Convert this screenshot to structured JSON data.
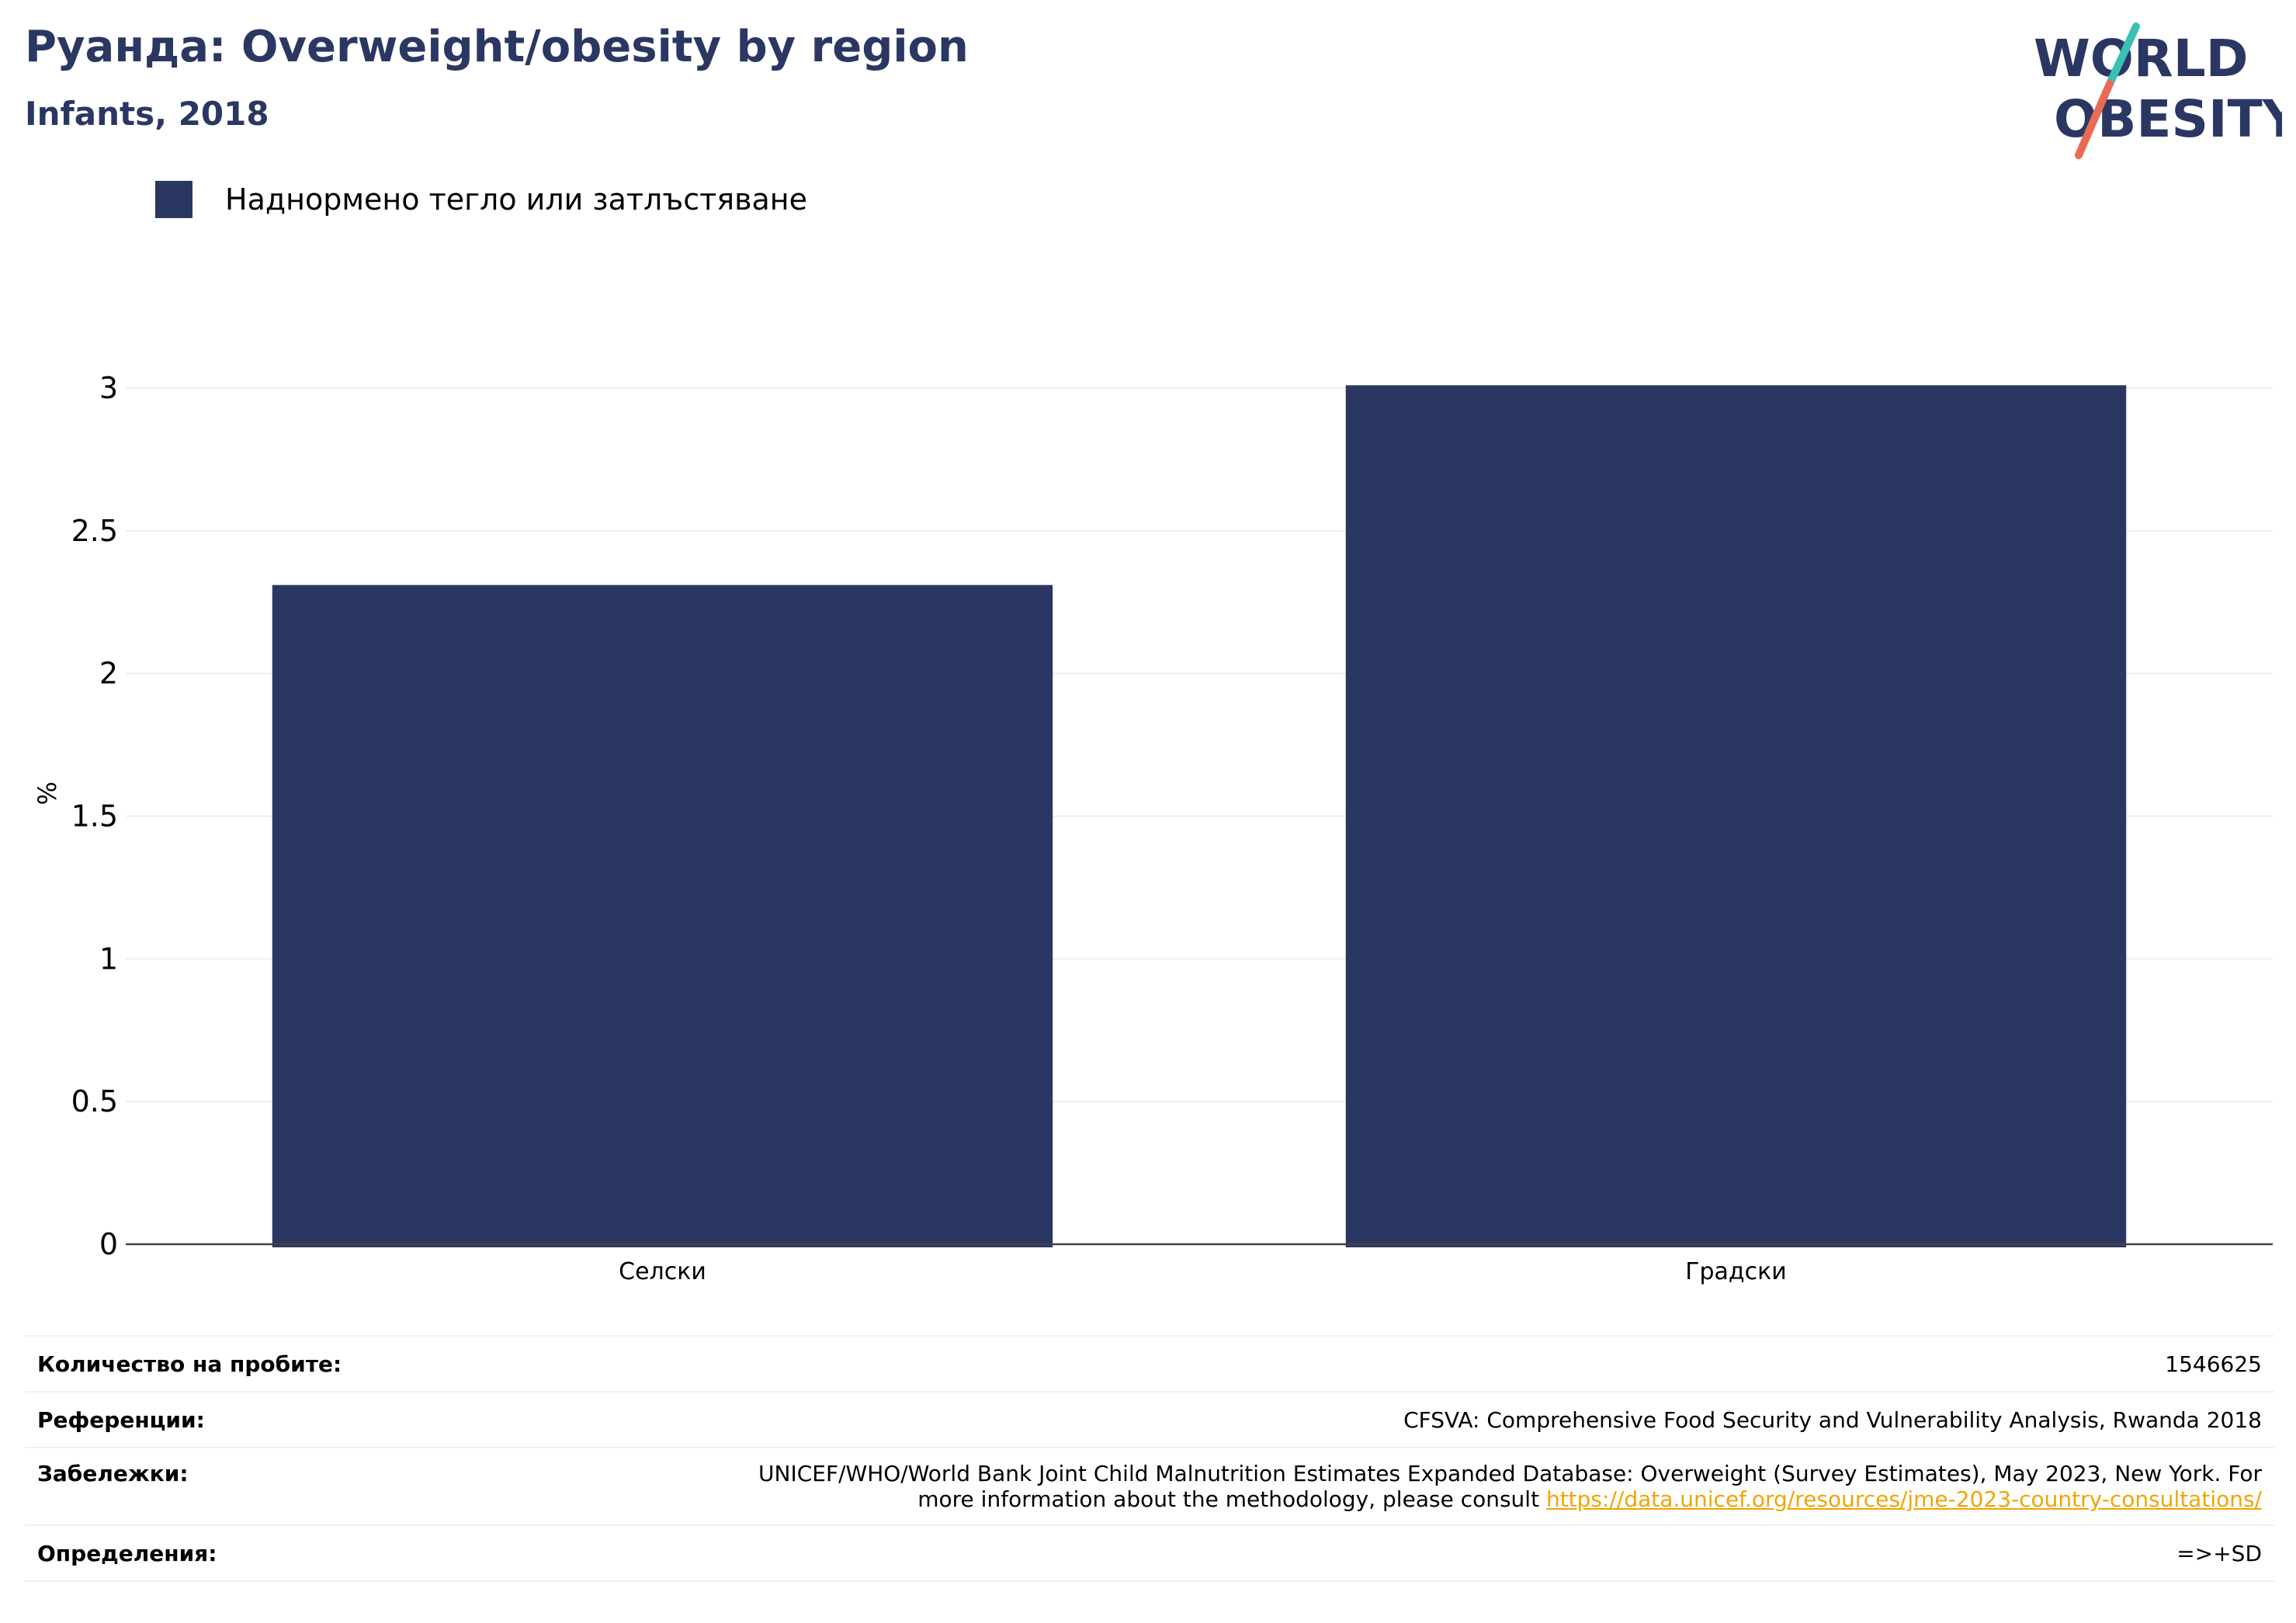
{
  "header": {
    "title": "Руанда: Overweight/obesity by region",
    "subtitle": "Infants, 2018"
  },
  "logo": {
    "line1": "WORLD",
    "line2": "OBESITY",
    "colors": {
      "text": "#2b3763",
      "slash_top": "#3bbfb3",
      "slash_bottom": "#e86b55"
    }
  },
  "legend": {
    "label": "Наднормено тегло или затлъстяване",
    "color": "#2b3763"
  },
  "chart_data": {
    "type": "bar",
    "categories": [
      "Селски",
      "Градски"
    ],
    "series": [
      {
        "name": "Наднормено тегло или затлъстяване",
        "values": [
          2.31,
          3.01
        ],
        "color": "#2b3763"
      }
    ],
    "ylabel": "%",
    "ylim": [
      0,
      3.1
    ],
    "yticks": [
      0,
      0.5,
      1,
      1.5,
      2,
      2.5,
      3
    ],
    "ytick_labels": [
      "0",
      "0.5",
      "1",
      "1.5",
      "2",
      "2.5",
      "3"
    ],
    "grid": true,
    "legend_position": "top-left"
  },
  "meta": {
    "sample_label": "Количество на пробите:",
    "sample_value": "1546625",
    "references_label": "Референции:",
    "references_value": "CFSVA: Comprehensive Food Security and Vulnerability Analysis, Rwanda 2018",
    "notes_label": "Забележки:",
    "notes_line1": "UNICEF/WHO/World Bank Joint Child Malnutrition Estimates Expanded Database: Overweight (Survey Estimates), May 2023, New York. For",
    "notes_line2": "more information about the methodology, please consult ",
    "notes_link": "https://data.unicef.org/resources/jme-2023-country-consultations/",
    "definitions_label": "Определения:",
    "definitions_value": "=>+SD"
  }
}
